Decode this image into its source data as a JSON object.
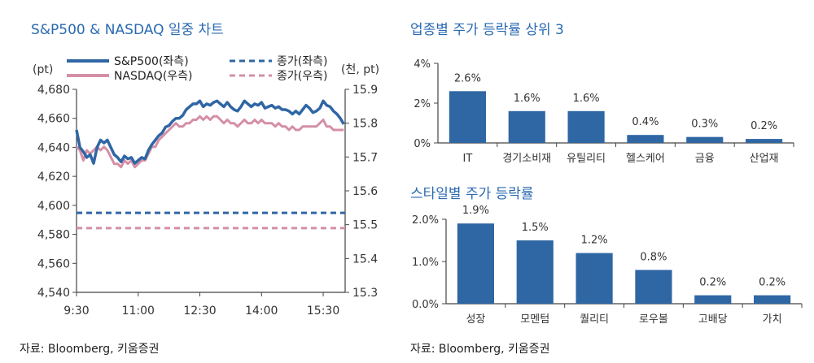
{
  "source_left": "자료: Bloomberg, 키움증권",
  "source_right": "자료: Bloomberg, 키움증권",
  "colors": {
    "sp": "#2f66a4",
    "nq": "#d48fa6",
    "bar": "#2f66a4",
    "axis": "#444444",
    "title": "#2a6ab0"
  },
  "chart_data": [
    {
      "type": "line",
      "title": "S&P500 & NASDAQ 일중 차트",
      "y_left_unit": "(pt)",
      "y_right_unit": "(천, pt)",
      "ylim_left": [
        4540,
        4680
      ],
      "ylim_right": [
        15.3,
        15.9
      ],
      "y_left_ticks": [
        "4,540",
        "4,560",
        "4,580",
        "4,600",
        "4,620",
        "4,640",
        "4,660",
        "4,680"
      ],
      "y_left_tick_values": [
        4540,
        4560,
        4580,
        4600,
        4620,
        4640,
        4660,
        4680
      ],
      "y_right_ticks": [
        "15.3",
        "15.4",
        "15.5",
        "15.6",
        "15.7",
        "15.8",
        "15.9"
      ],
      "y_right_tick_values": [
        15.3,
        15.4,
        15.5,
        15.6,
        15.7,
        15.8,
        15.9
      ],
      "x_ticks": [
        "9:30",
        "11:00",
        "12:30",
        "14:00",
        "15:30"
      ],
      "x_tick_minutes": [
        570,
        660,
        750,
        840,
        930
      ],
      "xlim_minutes": [
        570,
        962
      ],
      "legend": {
        "sp": "S&P500(좌측)",
        "nq": "NASDAQ(우측)",
        "sp_close": "종가(좌측)",
        "nq_close": "종가(우측)"
      },
      "series": [
        {
          "name": "S&P500(좌측)",
          "axis": "left",
          "x": [
            570,
            575,
            580,
            585,
            590,
            595,
            600,
            605,
            610,
            615,
            620,
            625,
            630,
            635,
            640,
            645,
            650,
            655,
            660,
            665,
            670,
            675,
            680,
            685,
            690,
            695,
            700,
            705,
            710,
            715,
            720,
            725,
            730,
            735,
            740,
            745,
            750,
            755,
            760,
            765,
            770,
            775,
            780,
            785,
            790,
            795,
            800,
            805,
            810,
            815,
            820,
            825,
            830,
            835,
            840,
            845,
            850,
            855,
            860,
            865,
            870,
            875,
            880,
            885,
            890,
            895,
            900,
            905,
            910,
            915,
            920,
            925,
            930,
            935,
            940,
            945,
            950,
            955,
            960
          ],
          "values": [
            4652,
            4640,
            4637,
            4633,
            4635,
            4629,
            4640,
            4645,
            4643,
            4645,
            4640,
            4635,
            4633,
            4630,
            4634,
            4632,
            4633,
            4629,
            4631,
            4633,
            4632,
            4638,
            4642,
            4645,
            4648,
            4650,
            4654,
            4655,
            4658,
            4660,
            4660,
            4662,
            4666,
            4668,
            4670,
            4670,
            4672,
            4668,
            4670,
            4669,
            4671,
            4672,
            4670,
            4668,
            4671,
            4668,
            4666,
            4665,
            4668,
            4672,
            4670,
            4668,
            4670,
            4669,
            4671,
            4667,
            4668,
            4669,
            4667,
            4668,
            4666,
            4666,
            4665,
            4663,
            4665,
            4663,
            4666,
            4669,
            4667,
            4664,
            4665,
            4667,
            4672,
            4669,
            4668,
            4665,
            4663,
            4660,
            4656
          ]
        },
        {
          "name": "NASDAQ(우측)",
          "axis": "right",
          "x": [
            570,
            575,
            580,
            585,
            590,
            595,
            600,
            605,
            610,
            615,
            620,
            625,
            630,
            635,
            640,
            645,
            650,
            655,
            660,
            665,
            670,
            675,
            680,
            685,
            690,
            695,
            700,
            705,
            710,
            715,
            720,
            725,
            730,
            735,
            740,
            745,
            750,
            755,
            760,
            765,
            770,
            775,
            780,
            785,
            790,
            795,
            800,
            805,
            810,
            815,
            820,
            825,
            830,
            835,
            840,
            845,
            850,
            855,
            860,
            865,
            870,
            875,
            880,
            885,
            890,
            895,
            900,
            905,
            910,
            915,
            920,
            925,
            930,
            935,
            940,
            945,
            950,
            955,
            960
          ],
          "values": [
            15.73,
            15.72,
            15.69,
            15.72,
            15.71,
            15.72,
            15.73,
            15.72,
            15.73,
            15.72,
            15.7,
            15.68,
            15.68,
            15.67,
            15.69,
            15.68,
            15.69,
            15.67,
            15.68,
            15.69,
            15.69,
            15.71,
            15.73,
            15.73,
            15.75,
            15.76,
            15.77,
            15.78,
            15.79,
            15.8,
            15.79,
            15.79,
            15.8,
            15.8,
            15.81,
            15.81,
            15.82,
            15.81,
            15.82,
            15.81,
            15.82,
            15.82,
            15.81,
            15.8,
            15.81,
            15.8,
            15.8,
            15.79,
            15.8,
            15.81,
            15.8,
            15.8,
            15.81,
            15.8,
            15.81,
            15.8,
            15.8,
            15.8,
            15.79,
            15.8,
            15.79,
            15.79,
            15.78,
            15.79,
            15.78,
            15.78,
            15.79,
            15.79,
            15.79,
            15.79,
            15.79,
            15.8,
            15.81,
            15.79,
            15.79,
            15.78,
            15.78,
            15.78,
            15.78
          ]
        }
      ],
      "reference_lines": [
        {
          "name": "종가(좌측)",
          "axis": "left",
          "value": 4594.8
        },
        {
          "name": "종가(우측)",
          "axis": "right",
          "value": 15.49
        }
      ]
    },
    {
      "type": "bar",
      "title": "업종별 주가 등락률 상위 3",
      "categories": [
        "IT",
        "경기소비재",
        "유틸리티",
        "헬스케어",
        "금융",
        "산업재"
      ],
      "values": [
        2.6,
        1.6,
        1.6,
        0.4,
        0.3,
        0.2
      ],
      "value_labels": [
        "2.6%",
        "1.6%",
        "1.6%",
        "0.4%",
        "0.3%",
        "0.2%"
      ],
      "ylim": [
        0,
        4
      ],
      "y_ticks": [
        "0%",
        "2%",
        "4%"
      ],
      "y_tick_values": [
        0,
        2,
        4
      ]
    },
    {
      "type": "bar",
      "title": "스타일별 주가 등락률",
      "categories": [
        "성장",
        "모멘텀",
        "퀄리티",
        "로우볼",
        "고배당",
        "가치"
      ],
      "values": [
        1.9,
        1.5,
        1.2,
        0.8,
        0.2,
        0.2
      ],
      "value_labels": [
        "1.9%",
        "1.5%",
        "1.2%",
        "0.8%",
        "0.2%",
        "0.2%"
      ],
      "ylim": [
        0,
        2
      ],
      "y_ticks": [
        "0.0%",
        "1.0%",
        "2.0%"
      ],
      "y_tick_values": [
        0,
        1,
        2
      ]
    }
  ]
}
